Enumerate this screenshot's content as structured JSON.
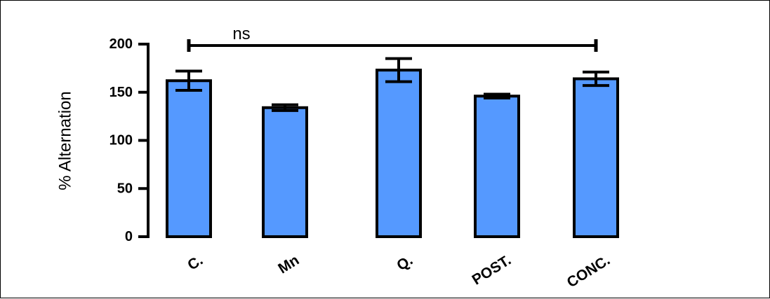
{
  "chart_data": {
    "type": "bar",
    "categories": [
      "C.",
      "Mn",
      "Q.",
      "POST.",
      "CONC."
    ],
    "values": [
      162,
      134,
      173,
      146,
      164
    ],
    "errors": [
      10,
      3,
      12,
      2,
      7
    ],
    "ylabel": "% Alternation",
    "ylim": [
      0,
      200
    ],
    "yticks": [
      0,
      50,
      100,
      150,
      200
    ],
    "significance": {
      "label": "ns",
      "from_category": "C.",
      "to_category": "CONC."
    },
    "bar_color": "#5599ff",
    "grid": false,
    "legend": "none"
  }
}
